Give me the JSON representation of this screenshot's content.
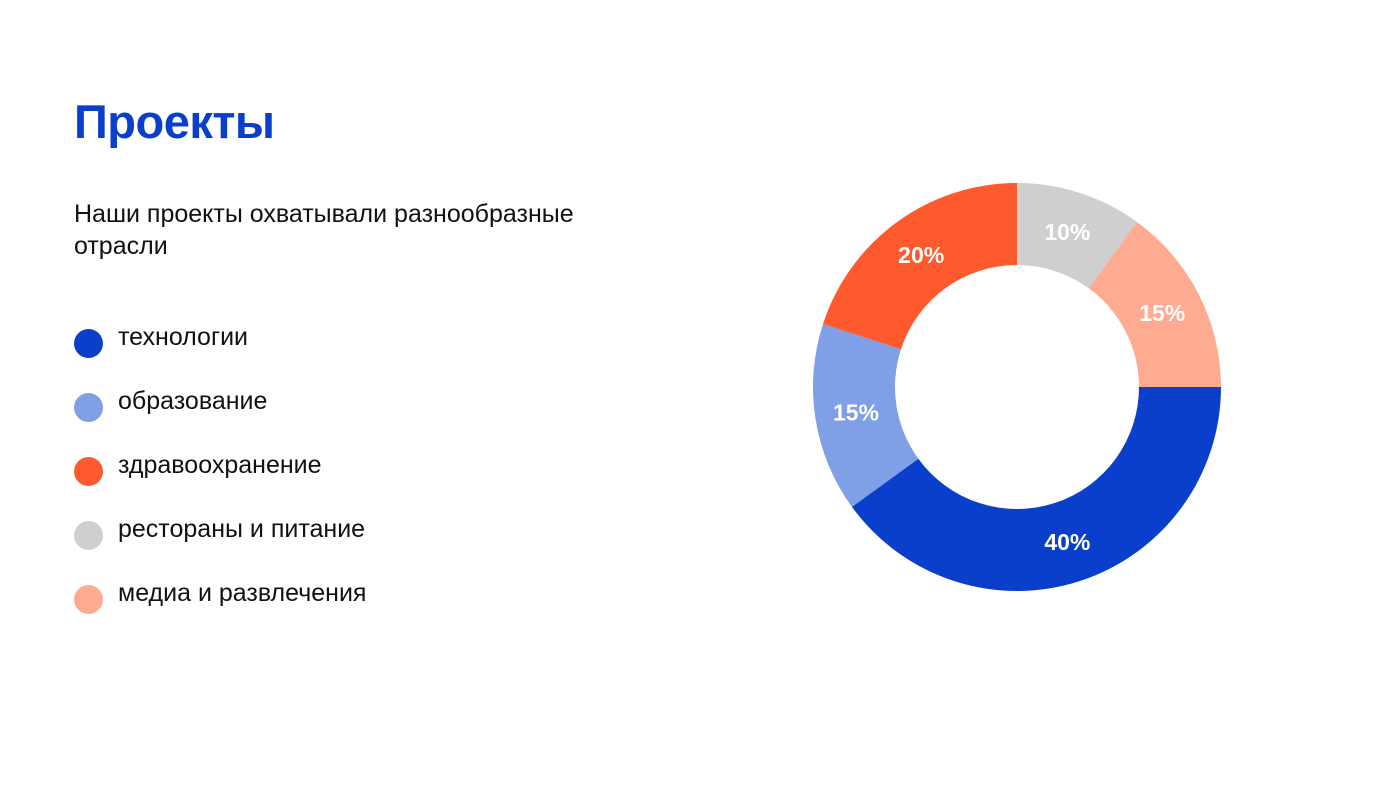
{
  "title": "Проекты",
  "subtitle": "Наши проекты охватывали разнообразные отрасли",
  "colors": {
    "title": "#0a3fcc"
  },
  "chart_data": {
    "type": "pie",
    "variant": "donut",
    "categories": [
      "технологии",
      "образование",
      "здравоохранение",
      "рестораны и питание",
      "медиа и развлечения"
    ],
    "values": [
      40,
      15,
      20,
      10,
      15
    ],
    "labels": [
      "40%",
      "15%",
      "20%",
      "10%",
      "15%"
    ],
    "colors": [
      "#0a3fcc",
      "#7f9fe6",
      "#ff5a2d",
      "#cfcfcf",
      "#ffab92"
    ],
    "legend_position": "left"
  }
}
